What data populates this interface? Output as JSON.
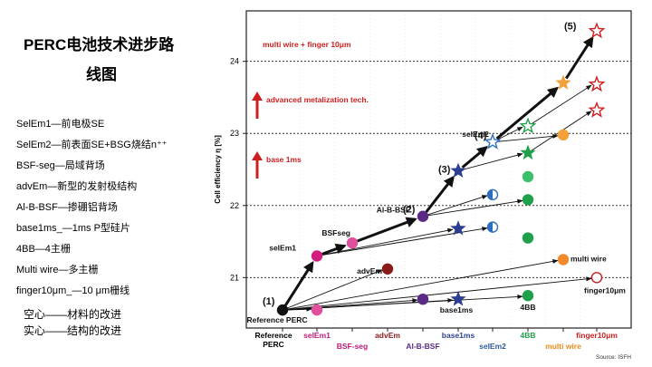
{
  "page_title": {
    "line1": "PERC电池技术进步路",
    "line2": "线图"
  },
  "legend_items": [
    "SelEm1—前电极SE",
    "SelEm2—前表面SE+BSG烧结n⁺⁺",
    "BSF-seg—局域背场",
    "advEm—新型的发射极结构",
    "Al-B-BSF—掺硼铝背场",
    "base1ms_—1ms P型硅片",
    "4BB—4主栅",
    "Multi wire—多主栅",
    "finger10μm_—10 μm栅线"
  ],
  "fill_legend": [
    "空心——材料的改进",
    "实心——结构的改进"
  ],
  "chart_data": {
    "type": "scatter",
    "ylabel": "Cell efficiency η [%]",
    "ylim": [
      20.3,
      24.7
    ],
    "yticks": [
      21,
      22,
      23,
      24
    ],
    "dotted_gridlines": [
      21,
      22,
      23,
      24
    ],
    "x_categories": [
      {
        "label": "Reference PERC",
        "color": "#000000"
      },
      {
        "label": "selEm1",
        "color": "#c0197a"
      },
      {
        "label": "BSF-seg",
        "color": "#c0197a"
      },
      {
        "label": "advEm",
        "color": "#8b1a1a"
      },
      {
        "label": "Al-B-BSF",
        "color": "#5b2a86"
      },
      {
        "label": "base1ms",
        "color": "#2c3e91"
      },
      {
        "label": "selEm2",
        "color": "#2c5aa0"
      },
      {
        "label": "4BB",
        "color": "#1fa04a"
      },
      {
        "label": "multi wire",
        "color": "#e88a1a"
      },
      {
        "label": "finger10μm",
        "color": "#cc1f1f"
      }
    ],
    "points": [
      {
        "x": 0,
        "y": 20.55,
        "shape": "circle",
        "fill": "solid",
        "color": "#111111"
      },
      {
        "x": 1,
        "y": 21.3,
        "shape": "circle",
        "fill": "solid",
        "color": "#d11d7e"
      },
      {
        "x": 1,
        "y": 20.55,
        "shape": "circle",
        "fill": "solid",
        "color": "#e04f9c"
      },
      {
        "x": 2,
        "y": 21.48,
        "shape": "circle",
        "fill": "solid",
        "color": "#e04f9c"
      },
      {
        "x": 3,
        "y": 21.12,
        "shape": "circle",
        "fill": "solid",
        "color": "#8b1a1a"
      },
      {
        "x": 4,
        "y": 21.85,
        "shape": "circle",
        "fill": "solid",
        "color": "#5b2a86"
      },
      {
        "x": 4,
        "y": 20.7,
        "shape": "circle",
        "fill": "solid",
        "color": "#5b2a86"
      },
      {
        "x": 5,
        "y": 22.48,
        "shape": "star",
        "fill": "solid",
        "color": "#2c3e91"
      },
      {
        "x": 5,
        "y": 21.68,
        "shape": "star",
        "fill": "solid",
        "color": "#2c3e91"
      },
      {
        "x": 5,
        "y": 20.7,
        "shape": "star",
        "fill": "solid",
        "color": "#2c3e91"
      },
      {
        "x": 6,
        "y": 22.88,
        "shape": "star",
        "fill": "hollow",
        "color": "#2c6fc0"
      },
      {
        "x": 6,
        "y": 22.15,
        "shape": "circle",
        "fill": "half",
        "color": "#2c6fc0"
      },
      {
        "x": 6,
        "y": 21.7,
        "shape": "circle",
        "fill": "half",
        "color": "#2c6fc0"
      },
      {
        "x": 7,
        "y": 23.1,
        "shape": "star",
        "fill": "hollow",
        "color": "#1fa04a"
      },
      {
        "x": 7,
        "y": 22.73,
        "shape": "star",
        "fill": "solid",
        "color": "#1fa04a"
      },
      {
        "x": 7,
        "y": 22.4,
        "shape": "circle",
        "fill": "solid",
        "color": "#3cbf6a"
      },
      {
        "x": 7,
        "y": 22.08,
        "shape": "circle",
        "fill": "solid",
        "color": "#1fa04a"
      },
      {
        "x": 7,
        "y": 21.55,
        "shape": "circle",
        "fill": "solid",
        "color": "#1fa04a"
      },
      {
        "x": 7,
        "y": 20.75,
        "shape": "circle",
        "fill": "solid",
        "color": "#1fa04a"
      },
      {
        "x": 8,
        "y": 23.7,
        "shape": "star",
        "fill": "solid",
        "color": "#f2a03a"
      },
      {
        "x": 8,
        "y": 22.98,
        "shape": "circle",
        "fill": "solid",
        "color": "#f2a03a"
      },
      {
        "x": 8,
        "y": 21.25,
        "shape": "circle",
        "fill": "solid",
        "color": "#f08a2a"
      },
      {
        "x": 9,
        "y": 24.42,
        "shape": "star",
        "fill": "hollow",
        "color": "#cc1f1f"
      },
      {
        "x": 9,
        "y": 23.68,
        "shape": "star",
        "fill": "hollow",
        "color": "#cc1f1f"
      },
      {
        "x": 9,
        "y": 23.32,
        "shape": "star",
        "fill": "hollow",
        "color": "#cc1f1f"
      },
      {
        "x": 9,
        "y": 21.0,
        "shape": "circle",
        "fill": "hollow",
        "color": "#cc1f1f"
      }
    ],
    "main_path": [
      [
        0,
        20.55
      ],
      [
        1,
        21.3
      ],
      [
        2,
        21.48
      ],
      [
        4,
        21.85
      ],
      [
        5,
        22.48
      ],
      [
        6,
        22.88
      ],
      [
        8,
        23.7
      ],
      [
        9,
        24.42
      ]
    ],
    "thin_arrows": [
      [
        [
          0,
          20.55
        ],
        [
          3,
          21.12
        ]
      ],
      [
        [
          0,
          20.55
        ],
        [
          4,
          20.7
        ]
      ],
      [
        [
          0,
          20.55
        ],
        [
          5,
          20.7
        ]
      ],
      [
        [
          0,
          20.55
        ],
        [
          7,
          20.75
        ]
      ],
      [
        [
          0,
          20.55
        ],
        [
          8,
          21.25
        ]
      ],
      [
        [
          0,
          20.55
        ],
        [
          9,
          21.0
        ]
      ],
      [
        [
          0,
          20.55
        ],
        [
          1,
          20.55
        ]
      ],
      [
        [
          1,
          21.3
        ],
        [
          5,
          21.68
        ]
      ],
      [
        [
          1,
          21.3
        ],
        [
          6,
          21.7
        ]
      ],
      [
        [
          4,
          21.85
        ],
        [
          6,
          22.15
        ]
      ],
      [
        [
          4,
          21.85
        ],
        [
          7,
          22.08
        ]
      ],
      [
        [
          5,
          22.48
        ],
        [
          7,
          22.73
        ]
      ],
      [
        [
          6,
          22.88
        ],
        [
          7,
          23.1
        ]
      ],
      [
        [
          6,
          22.88
        ],
        [
          8,
          22.98
        ]
      ],
      [
        [
          7,
          22.73
        ],
        [
          9,
          23.32
        ]
      ],
      [
        [
          7,
          23.1
        ],
        [
          9,
          23.68
        ]
      ]
    ],
    "step_labels": [
      {
        "text": "(1)",
        "x": 0,
        "y": 20.55
      },
      {
        "text": "(2)",
        "x": 4,
        "y": 21.85
      },
      {
        "text": "(3)",
        "x": 5,
        "y": 22.48
      },
      {
        "text": "(4)",
        "x": 6,
        "y": 22.88
      },
      {
        "text": "(5)",
        "x": 9,
        "y": 24.42
      }
    ],
    "annotations": [
      {
        "text": "multi wire + finger 10μm",
        "color": "#cc1f1f"
      },
      {
        "text": "advanced metalization tech.",
        "color": "#cc1f1f"
      },
      {
        "text": "base 1ms",
        "color": "#cc1f1f"
      }
    ],
    "point_labels": [
      {
        "text": "Reference PERC",
        "x": 0,
        "y": 20.55
      },
      {
        "text": "selEm1",
        "x": 1,
        "y": 21.3
      },
      {
        "text": "BSFseg",
        "x": 2,
        "y": 21.48
      },
      {
        "text": "advEm",
        "x": 3,
        "y": 21.12
      },
      {
        "text": "Al-B-BSF",
        "x": 4,
        "y": 21.85
      },
      {
        "text": "base1ms",
        "x": 5,
        "y": 20.7
      },
      {
        "text": "selEm2",
        "x": 6,
        "y": 22.88
      },
      {
        "text": "4BB",
        "x": 7,
        "y": 20.75
      },
      {
        "text": "multi wire",
        "x": 8,
        "y": 21.25
      },
      {
        "text": "finger10μm",
        "x": 9,
        "y": 21.0
      }
    ],
    "source": "Source: ISFH"
  }
}
